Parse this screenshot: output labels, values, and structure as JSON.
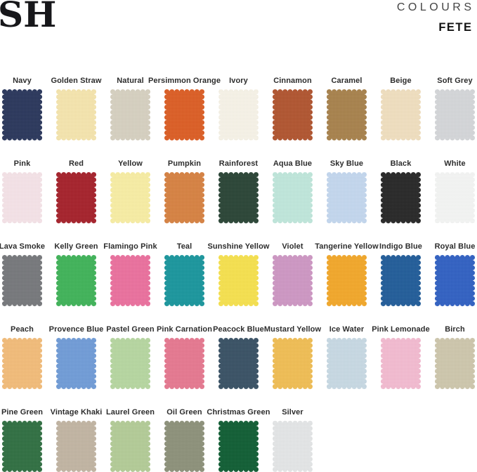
{
  "header": {
    "logo": "SH",
    "collection_label": "COLOURS",
    "collection_name": "FETE"
  },
  "swatch_rows": [
    {
      "swatches": [
        {
          "name": "Navy",
          "color": "#27345a"
        },
        {
          "name": "Golden Straw",
          "color": "#f8e7ae"
        },
        {
          "name": "Natural",
          "color": "#d8d2c2"
        },
        {
          "name": "Persimmon Orange",
          "color": "#de5c21"
        },
        {
          "name": "Ivory",
          "color": "#faf6ea"
        },
        {
          "name": "Cinnamon",
          "color": "#b1532d"
        },
        {
          "name": "Caramel",
          "color": "#a8814a"
        },
        {
          "name": "Beige",
          "color": "#f3e1c1"
        },
        {
          "name": "Soft Grey",
          "color": "#d6d8db"
        }
      ]
    },
    {
      "swatches": [
        {
          "name": "Pink",
          "color": "#f8e5ea"
        },
        {
          "name": "Red",
          "color": "#a61e28"
        },
        {
          "name": "Yellow",
          "color": "#fbf0a4"
        },
        {
          "name": "Pumpkin",
          "color": "#d8813f"
        },
        {
          "name": "Rainforest",
          "color": "#274233"
        },
        {
          "name": "Aqua Blue",
          "color": "#c1e9dd"
        },
        {
          "name": "Sky Blue",
          "color": "#c5d9f1"
        },
        {
          "name": "Black",
          "color": "#242424"
        },
        {
          "name": "White",
          "color": "#f7f8f7"
        }
      ]
    },
    {
      "swatches": [
        {
          "name": "Lava Smoke",
          "color": "#75777a"
        },
        {
          "name": "Kelly Green",
          "color": "#3db457"
        },
        {
          "name": "Flamingo Pink",
          "color": "#ed6f9e"
        },
        {
          "name": "Teal",
          "color": "#16969d"
        },
        {
          "name": "Sunshine Yellow",
          "color": "#f9e34c"
        },
        {
          "name": "Violet",
          "color": "#cf97c5"
        },
        {
          "name": "Tangerine Yellow",
          "color": "#f5a827"
        },
        {
          "name": "Indigo Blue",
          "color": "#1e5b99"
        },
        {
          "name": "Royal Blue",
          "color": "#2e5fc4"
        }
      ]
    },
    {
      "swatches": [
        {
          "name": "Peach",
          "color": "#f5bd78"
        },
        {
          "name": "Provence Blue",
          "color": "#6f9cd9"
        },
        {
          "name": "Pastel Green",
          "color": "#b7d8a1"
        },
        {
          "name": "Pink Carnation",
          "color": "#e87790"
        },
        {
          "name": "Peacock Blue",
          "color": "#364f63"
        },
        {
          "name": "Mustard Yellow",
          "color": "#f3bf52"
        },
        {
          "name": "Ice Water",
          "color": "#c9dbe6"
        },
        {
          "name": "Pink Lemonade",
          "color": "#f6bcd2"
        },
        {
          "name": "Birch",
          "color": "#cfc8ad"
        }
      ]
    },
    {
      "swatches": [
        {
          "name": "Pine Green",
          "color": "#2d6e3f"
        },
        {
          "name": "Vintage Khaki",
          "color": "#c3b5a3"
        },
        {
          "name": "Laurel Green",
          "color": "#b4cd97"
        },
        {
          "name": "Oil Green",
          "color": "#8d9179"
        },
        {
          "name": "Christmas Green",
          "color": "#0c5c31"
        },
        {
          "name": "Silver",
          "color": "#e6e8e9"
        }
      ]
    }
  ]
}
